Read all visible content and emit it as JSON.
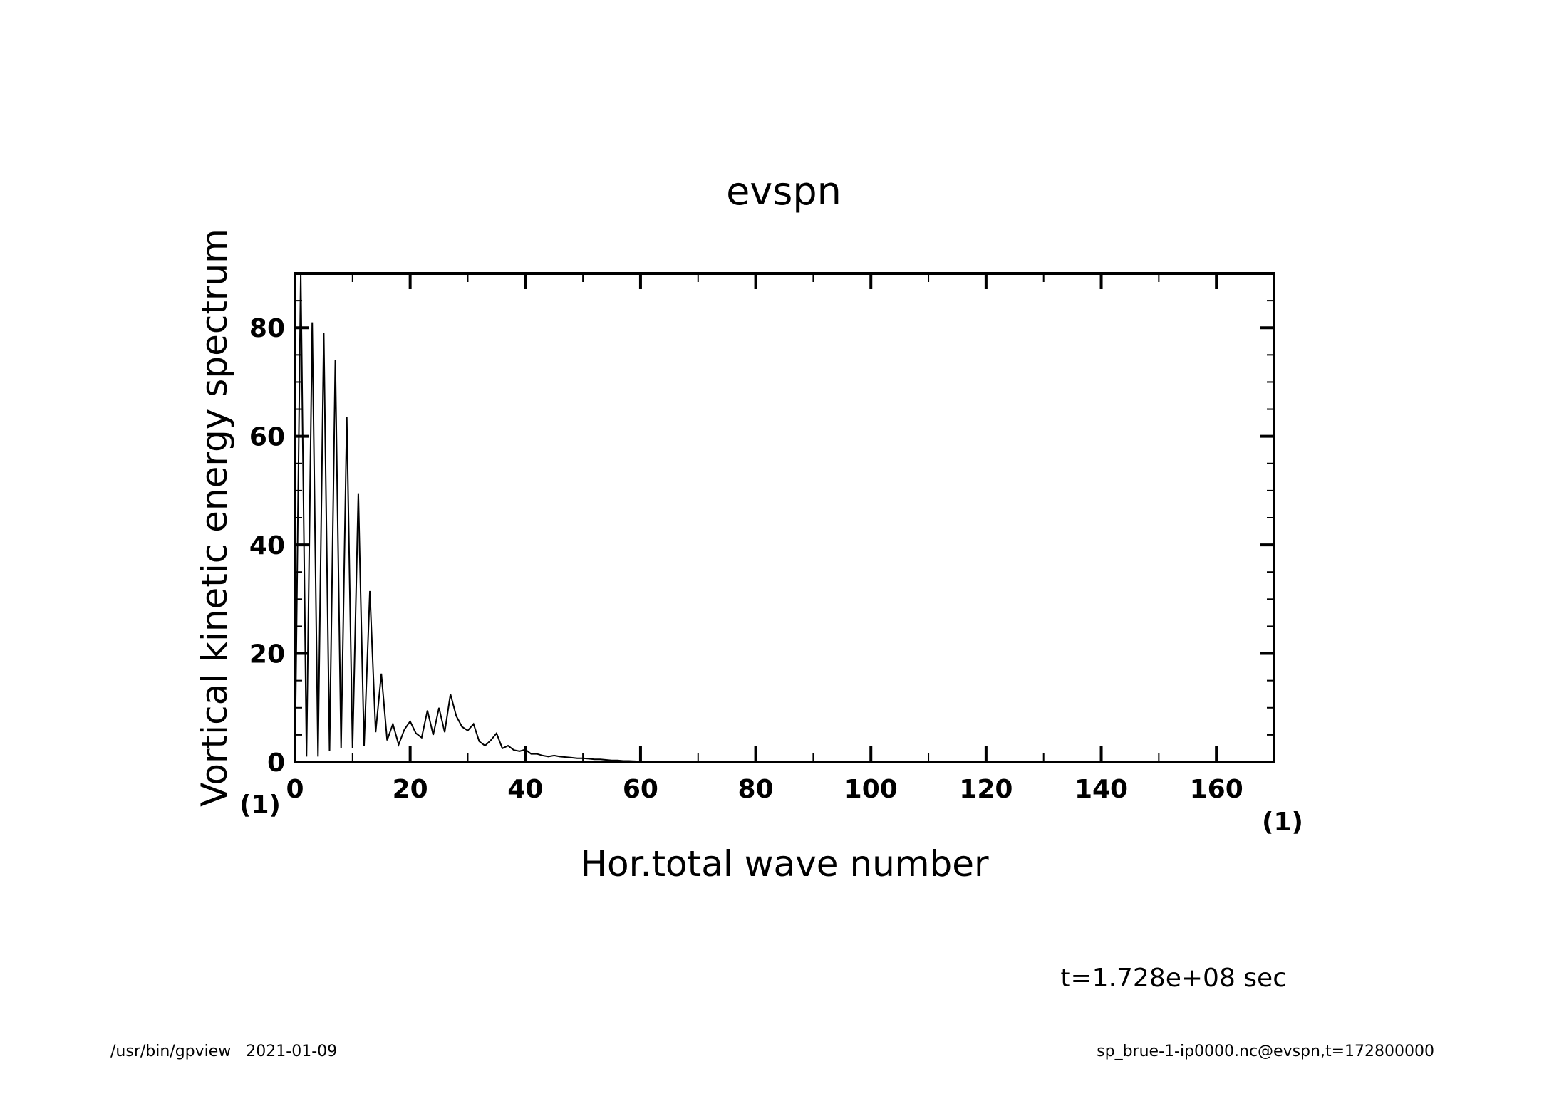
{
  "chart_data": {
    "type": "line",
    "title": "evspn",
    "xlabel": "Hor.total wave number",
    "ylabel": "Vortical kinetic energy spectrum",
    "x_unit": "(1)",
    "y_unit": "(1)",
    "xlim": [
      0,
      170
    ],
    "ylim": [
      0,
      90
    ],
    "x_ticks": [
      0,
      20,
      40,
      60,
      80,
      100,
      120,
      140,
      160
    ],
    "y_ticks": [
      0,
      20,
      40,
      60,
      80
    ],
    "x_tick_labels": [
      "0",
      "20",
      "40",
      "60",
      "80",
      "100",
      "120",
      "140",
      "160"
    ],
    "y_tick_labels": [
      "0",
      "20",
      "40",
      "60",
      "80"
    ],
    "grid": false,
    "series": [
      {
        "x": [
          0,
          1,
          2,
          3,
          4,
          5,
          6,
          7,
          8,
          9,
          10,
          11,
          12,
          13,
          14,
          15,
          16,
          17,
          18,
          19,
          20,
          21,
          22,
          23,
          24,
          25,
          26,
          27,
          28,
          29,
          30,
          31,
          32,
          33,
          34,
          35,
          36,
          37,
          38,
          39,
          40,
          41,
          42,
          43,
          44,
          45,
          46,
          47,
          48,
          49,
          50,
          51,
          52,
          53,
          54,
          55,
          56,
          57,
          58,
          59,
          60,
          62,
          64,
          66,
          68,
          70,
          75,
          80,
          90,
          100,
          120,
          140,
          160,
          170
        ],
        "y": [
          0,
          90,
          1,
          81,
          1,
          79,
          2,
          74,
          2.5,
          63.5,
          2.5,
          49.5,
          3,
          31.5,
          5.5,
          16.3,
          4,
          7,
          3.2,
          6,
          7.5,
          5.3,
          4.5,
          9.5,
          5,
          10,
          5.5,
          12.5,
          8.5,
          6.5,
          5.8,
          7,
          3.8,
          3,
          4,
          5.3,
          2.5,
          3,
          2.2,
          2,
          2.3,
          1.5,
          1.5,
          1.2,
          1,
          1.2,
          1,
          0.9,
          0.8,
          0.7,
          0.7,
          0.6,
          0.5,
          0.5,
          0.4,
          0.3,
          0.3,
          0.2,
          0.2,
          0.15,
          0.1,
          0.08,
          0.06,
          0.05,
          0.04,
          0.03,
          0.02,
          0.02,
          0.01,
          0.01,
          0,
          0,
          0,
          0
        ]
      }
    ]
  },
  "time_label": "t=1.728e+08 sec",
  "footer": {
    "left": "/usr/bin/gpview   2021-01-09",
    "right": "sp_brue-1-ip0000.nc@evspn,t=172800000"
  }
}
